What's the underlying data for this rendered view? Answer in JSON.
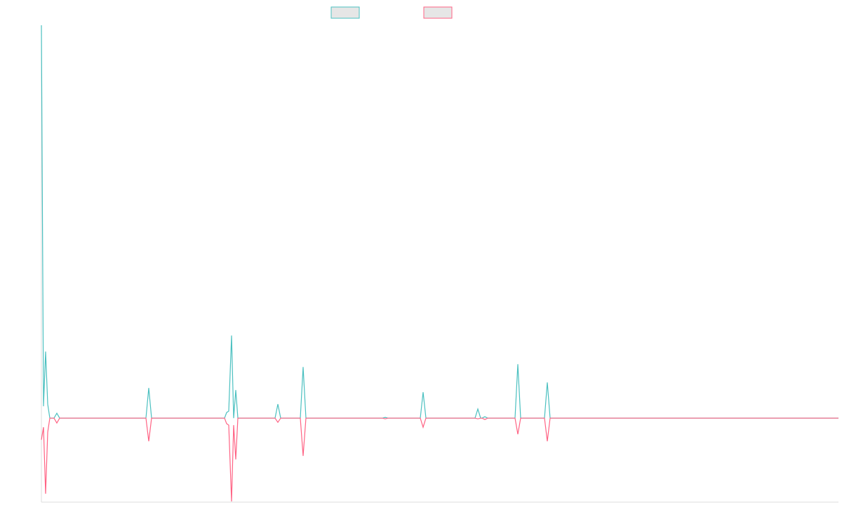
{
  "chart_data": {
    "type": "line",
    "x": [
      0,
      3,
      6,
      9,
      12,
      18,
      22,
      26,
      149,
      153,
      157,
      261,
      264,
      267,
      271,
      274,
      277,
      280,
      333,
      337,
      341,
      369,
      373,
      377,
      486,
      490,
      494,
      540,
      544,
      548,
      618,
      622,
      626,
      628,
      632,
      636,
      675,
      679,
      683,
      717,
      721,
      725,
      1136
    ],
    "xlim": [
      0,
      1136
    ],
    "ylim": [
      -120,
      561
    ],
    "series": [
      {
        "color": "#4bc0c0",
        "values": [
          561,
          17,
          95,
          20,
          0,
          0,
          7,
          0,
          0,
          43,
          0,
          0,
          8,
          10,
          118,
          0,
          40,
          0,
          0,
          20,
          0,
          0,
          73,
          0,
          0,
          1,
          0,
          0,
          37,
          0,
          0,
          13,
          0,
          0,
          2,
          0,
          0,
          77,
          0,
          0,
          51,
          0,
          0
        ]
      },
      {
        "color": "#ff6384",
        "values": [
          -31,
          -13,
          -108,
          -20,
          0,
          0,
          -7,
          0,
          0,
          -33,
          0,
          0,
          -8,
          -10,
          -119,
          -10,
          -59,
          0,
          0,
          -6,
          0,
          0,
          -54,
          0,
          0,
          -1,
          0,
          0,
          -13,
          0,
          0,
          -1,
          0,
          0,
          -2,
          0,
          0,
          -23,
          0,
          0,
          -33,
          0,
          0
        ]
      }
    ]
  }
}
